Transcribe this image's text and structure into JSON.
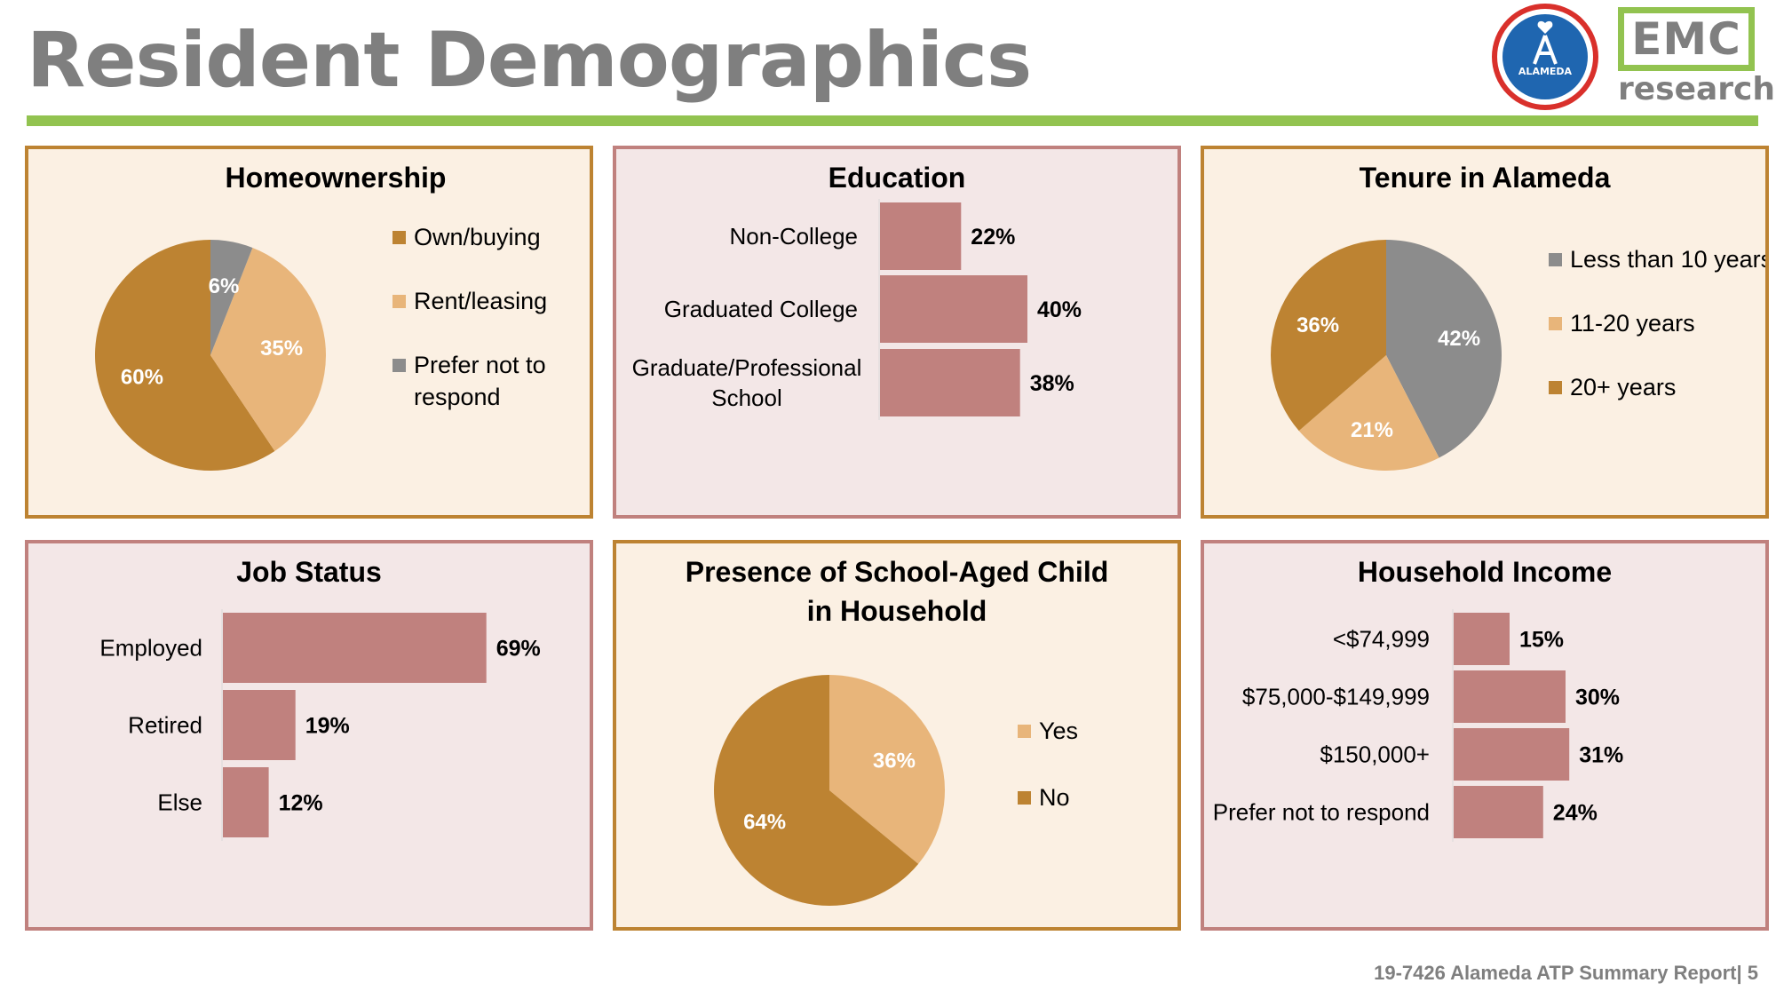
{
  "header": {
    "title": "Resident Demographics",
    "logo_seal_text": "ALAMEDA",
    "logo_emc_top": "EMC",
    "logo_emc_bottom": "research"
  },
  "footer": {
    "text": "19-7426 Alameda ATP Summary Report| 5"
  },
  "colors": {
    "gold": "#bd8332",
    "tan": "#e8b57a",
    "gray": "#8c8c8c",
    "rose": "#c0817e",
    "panel_gold_bg": "#fbf0e3",
    "panel_rose_bg": "#f3e7e7",
    "title_gray": "#7f7f7f",
    "rule_green": "#92c350"
  },
  "chart_data": [
    {
      "id": "homeownership",
      "type": "pie",
      "title": "Homeownership",
      "slices": [
        {
          "label": "Own/buying",
          "value": 60,
          "display": "60%",
          "color": "#bd8332"
        },
        {
          "label": "Rent/leasing",
          "value": 35,
          "display": "35%",
          "color": "#e8b57a"
        },
        {
          "label": "Prefer not to respond",
          "value": 6,
          "display": "6%",
          "color": "#8c8c8c"
        }
      ],
      "legend_lines": [
        [
          "Own/buying"
        ],
        [
          "Rent/leasing"
        ],
        [
          "Prefer not to",
          "respond"
        ]
      ],
      "legend_position": "right"
    },
    {
      "id": "education",
      "type": "bar",
      "orientation": "horizontal",
      "title": "Education",
      "categories": [
        "Non-College",
        "Graduated College",
        "Graduate/Professional School"
      ],
      "category_lines": [
        [
          "Non-College"
        ],
        [
          "Graduated College"
        ],
        [
          "Graduate/Professional",
          "School"
        ]
      ],
      "values": [
        22,
        40,
        38
      ],
      "labels": [
        "22%",
        "40%",
        "38%"
      ],
      "color": "#c0817e"
    },
    {
      "id": "tenure",
      "type": "pie",
      "title": "Tenure in Alameda",
      "slices": [
        {
          "label": "Less than 10 years",
          "value": 42,
          "display": "42%",
          "color": "#8c8c8c"
        },
        {
          "label": "11-20 years",
          "value": 21,
          "display": "21%",
          "color": "#e8b57a"
        },
        {
          "label": "20+ years",
          "value": 36,
          "display": "36%",
          "color": "#bd8332"
        }
      ],
      "legend_lines": [
        [
          "Less than 10 years"
        ],
        [
          "11-20 years"
        ],
        [
          "20+ years"
        ]
      ],
      "legend_position": "right"
    },
    {
      "id": "job_status",
      "type": "bar",
      "orientation": "horizontal",
      "title": "Job Status",
      "categories": [
        "Employed",
        "Retired",
        "Else"
      ],
      "category_lines": [
        [
          "Employed"
        ],
        [
          "Retired"
        ],
        [
          "Else"
        ]
      ],
      "values": [
        69,
        19,
        12
      ],
      "labels": [
        "69%",
        "19%",
        "12%"
      ],
      "color": "#c0817e"
    },
    {
      "id": "school_child",
      "type": "pie",
      "title": "Presence of School-Aged Child in Household",
      "title_lines": [
        "Presence of School-Aged Child",
        "in Household"
      ],
      "slices": [
        {
          "label": "Yes",
          "value": 36,
          "display": "36%",
          "color": "#e8b57a"
        },
        {
          "label": "No",
          "value": 64,
          "display": "64%",
          "color": "#bd8332"
        }
      ],
      "legend_lines": [
        [
          "Yes"
        ],
        [
          "No"
        ]
      ],
      "legend_position": "right"
    },
    {
      "id": "income",
      "type": "bar",
      "orientation": "horizontal",
      "title": "Household Income",
      "categories": [
        "<$74,999",
        "$75,000-$149,999",
        "$150,000+",
        "Prefer not to respond"
      ],
      "category_lines": [
        [
          "<$74,999"
        ],
        [
          "$75,000-$149,999"
        ],
        [
          "$150,000+"
        ],
        [
          "Prefer not to respond"
        ]
      ],
      "values": [
        15,
        30,
        31,
        24
      ],
      "labels": [
        "15%",
        "30%",
        "31%",
        "24%"
      ],
      "color": "#c0817e"
    }
  ]
}
